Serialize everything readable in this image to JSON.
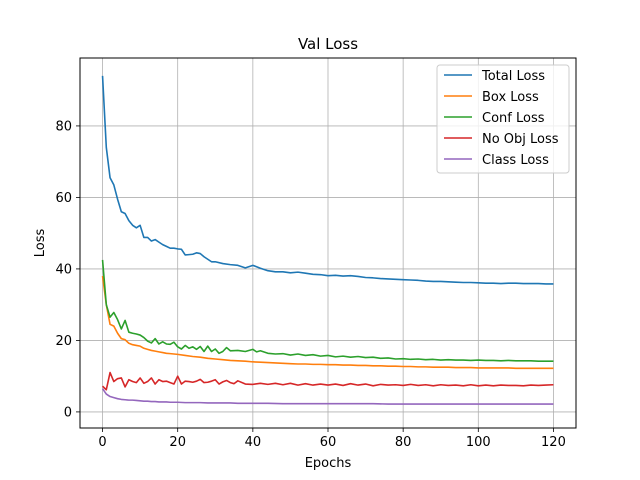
{
  "chart_data": {
    "type": "line",
    "title": "Val Loss",
    "xlabel": "Epochs",
    "ylabel": "Loss",
    "xlim": [
      -6,
      126
    ],
    "ylim": [
      -4.5,
      99
    ],
    "xticks": [
      0,
      20,
      40,
      60,
      80,
      100,
      120
    ],
    "yticks": [
      0,
      20,
      40,
      60,
      80
    ],
    "grid": true,
    "legend_position": "top-right",
    "series": [
      {
        "name": "Total Loss",
        "color": "#1f77b4",
        "x": [
          0,
          1,
          2,
          3,
          4,
          5,
          6,
          7,
          8,
          9,
          10,
          11,
          12,
          13,
          14,
          15,
          16,
          17,
          18,
          19,
          20,
          21,
          22,
          23,
          24,
          25,
          26,
          27,
          28,
          29,
          30,
          32,
          34,
          36,
          38,
          40,
          42,
          44,
          46,
          48,
          50,
          52,
          54,
          56,
          58,
          60,
          62,
          64,
          66,
          68,
          70,
          72,
          74,
          76,
          78,
          80,
          82,
          84,
          86,
          88,
          90,
          92,
          94,
          96,
          98,
          100,
          102,
          104,
          106,
          108,
          110,
          112,
          114,
          116,
          118,
          120
        ],
        "values": [
          94,
          74,
          65.5,
          63.5,
          59.5,
          56,
          55.5,
          53.5,
          52.2,
          51.5,
          52.2,
          48.8,
          48.8,
          47.8,
          48.2,
          47.5,
          46.8,
          46.3,
          45.8,
          45.8,
          45.6,
          45.5,
          43.9,
          44,
          44.1,
          44.5,
          44.3,
          43.4,
          42.7,
          42,
          42,
          41.5,
          41.2,
          41,
          40.3,
          41,
          40.2,
          39.5,
          39.2,
          39.2,
          38.9,
          39.1,
          38.8,
          38.5,
          38.4,
          38.1,
          38.2,
          38,
          38.1,
          37.9,
          37.6,
          37.5,
          37.3,
          37.2,
          37.1,
          37,
          36.9,
          36.8,
          36.6,
          36.5,
          36.5,
          36.4,
          36.3,
          36.2,
          36.2,
          36.1,
          36,
          36,
          35.9,
          36,
          36,
          35.9,
          35.9,
          35.9,
          35.8,
          35.8
        ]
      },
      {
        "name": "Box Loss",
        "color": "#ff7f0e",
        "x": [
          0,
          1,
          2,
          3,
          4,
          5,
          6,
          7,
          8,
          9,
          10,
          11,
          12,
          13,
          14,
          15,
          16,
          17,
          18,
          19,
          20,
          22,
          24,
          26,
          28,
          30,
          32,
          34,
          36,
          38,
          40,
          42,
          44,
          46,
          48,
          50,
          52,
          54,
          56,
          58,
          60,
          62,
          64,
          66,
          68,
          70,
          72,
          74,
          76,
          78,
          80,
          82,
          84,
          86,
          88,
          90,
          92,
          94,
          96,
          98,
          100,
          102,
          104,
          106,
          108,
          110,
          112,
          114,
          116,
          118,
          120
        ],
        "values": [
          38,
          30,
          24.5,
          24,
          22,
          20.5,
          20.2,
          19.2,
          18.8,
          18.6,
          18.4,
          17.8,
          17.5,
          17.2,
          17,
          16.8,
          16.6,
          16.4,
          16.3,
          16.2,
          16.1,
          15.8,
          15.5,
          15.3,
          15,
          14.8,
          14.6,
          14.4,
          14.3,
          14.2,
          14,
          13.9,
          13.8,
          13.7,
          13.6,
          13.5,
          13.4,
          13.4,
          13.3,
          13.3,
          13.2,
          13.2,
          13.1,
          13.1,
          13,
          13,
          12.9,
          12.9,
          12.8,
          12.8,
          12.7,
          12.7,
          12.6,
          12.6,
          12.5,
          12.5,
          12.5,
          12.4,
          12.4,
          12.4,
          12.3,
          12.3,
          12.3,
          12.3,
          12.3,
          12.2,
          12.2,
          12.2,
          12.2,
          12.2,
          12.2
        ]
      },
      {
        "name": "Conf Loss",
        "color": "#2ca02c",
        "x": [
          0,
          1,
          2,
          3,
          4,
          5,
          6,
          7,
          8,
          9,
          10,
          11,
          12,
          13,
          14,
          15,
          16,
          17,
          18,
          19,
          20,
          21,
          22,
          23,
          24,
          25,
          26,
          27,
          28,
          29,
          30,
          31,
          32,
          33,
          34,
          36,
          38,
          40,
          41,
          42,
          44,
          46,
          48,
          50,
          52,
          54,
          56,
          58,
          60,
          62,
          64,
          66,
          68,
          70,
          72,
          74,
          76,
          78,
          80,
          82,
          84,
          86,
          88,
          90,
          92,
          94,
          96,
          98,
          100,
          102,
          104,
          106,
          108,
          110,
          112,
          114,
          116,
          118,
          120
        ],
        "values": [
          42.5,
          30,
          26.5,
          27.8,
          25.8,
          23.2,
          25.6,
          22.3,
          22,
          21.8,
          21.5,
          20.8,
          19.8,
          19.3,
          20.5,
          19,
          19.6,
          19,
          18.9,
          19.5,
          18.2,
          17.6,
          18.6,
          17.8,
          18.2,
          17.5,
          18.3,
          16.9,
          18.4,
          16.9,
          17.6,
          16.4,
          16.9,
          18,
          17.1,
          17.2,
          16.9,
          17.5,
          16.8,
          17.1,
          16.4,
          16.2,
          16.3,
          15.9,
          16.2,
          15.8,
          16,
          15.6,
          15.8,
          15.4,
          15.6,
          15.3,
          15.5,
          15.2,
          15.3,
          15,
          15.1,
          14.8,
          14.9,
          14.7,
          14.8,
          14.6,
          14.7,
          14.5,
          14.6,
          14.5,
          14.5,
          14.4,
          14.5,
          14.4,
          14.4,
          14.3,
          14.4,
          14.3,
          14.3,
          14.3,
          14.2,
          14.2,
          14.2
        ]
      },
      {
        "name": "No Obj Loss",
        "color": "#d62728",
        "x": [
          0,
          1,
          2,
          3,
          4,
          5,
          6,
          7,
          8,
          9,
          10,
          11,
          12,
          13,
          14,
          15,
          16,
          17,
          18,
          19,
          20,
          21,
          22,
          23,
          24,
          25,
          26,
          27,
          28,
          29,
          30,
          31,
          32,
          33,
          34,
          35,
          36,
          38,
          40,
          42,
          44,
          46,
          48,
          50,
          52,
          54,
          56,
          58,
          60,
          62,
          64,
          66,
          68,
          70,
          72,
          74,
          76,
          78,
          80,
          82,
          84,
          86,
          88,
          90,
          92,
          94,
          96,
          98,
          100,
          102,
          104,
          106,
          108,
          110,
          112,
          114,
          116,
          118,
          120
        ],
        "values": [
          7.2,
          6.2,
          11,
          8.5,
          9.3,
          9.5,
          7,
          9,
          8.5,
          8.2,
          9.5,
          8,
          8.5,
          9.5,
          7.8,
          9,
          8.5,
          8.6,
          8.2,
          7.8,
          10,
          7.8,
          8.6,
          8.5,
          8.3,
          8.6,
          9.1,
          8.2,
          8.3,
          8.6,
          9,
          7.8,
          8.4,
          8.8,
          8.2,
          7.9,
          8.7,
          7.8,
          7.7,
          8,
          7.7,
          8,
          7.6,
          8,
          7.5,
          7.9,
          7.5,
          7.8,
          7.5,
          7.8,
          7.4,
          7.9,
          7.5,
          7.8,
          7.3,
          7.7,
          7.5,
          7.6,
          7.4,
          7.7,
          7.4,
          7.6,
          7.3,
          7.6,
          7.4,
          7.5,
          7.3,
          7.6,
          7.3,
          7.5,
          7.3,
          7.5,
          7.4,
          7.4,
          7.3,
          7.5,
          7.4,
          7.5,
          7.6
        ]
      },
      {
        "name": "Class Loss",
        "color": "#9467bd",
        "x": [
          0,
          1,
          2,
          3,
          4,
          5,
          6,
          7,
          8,
          9,
          10,
          11,
          12,
          13,
          14,
          15,
          16,
          17,
          18,
          19,
          20,
          22,
          24,
          26,
          28,
          30,
          32,
          34,
          36,
          38,
          40,
          44,
          48,
          52,
          56,
          60,
          64,
          68,
          72,
          76,
          80,
          84,
          88,
          92,
          96,
          100,
          104,
          108,
          112,
          116,
          120
        ],
        "values": [
          6.5,
          5,
          4.3,
          4,
          3.7,
          3.5,
          3.4,
          3.3,
          3.3,
          3.2,
          3.1,
          3,
          3,
          2.9,
          2.9,
          2.8,
          2.8,
          2.8,
          2.7,
          2.7,
          2.7,
          2.6,
          2.6,
          2.6,
          2.5,
          2.5,
          2.5,
          2.5,
          2.4,
          2.4,
          2.4,
          2.4,
          2.3,
          2.3,
          2.3,
          2.3,
          2.3,
          2.3,
          2.3,
          2.2,
          2.2,
          2.2,
          2.2,
          2.2,
          2.2,
          2.2,
          2.2,
          2.2,
          2.2,
          2.2,
          2.2
        ]
      }
    ]
  }
}
